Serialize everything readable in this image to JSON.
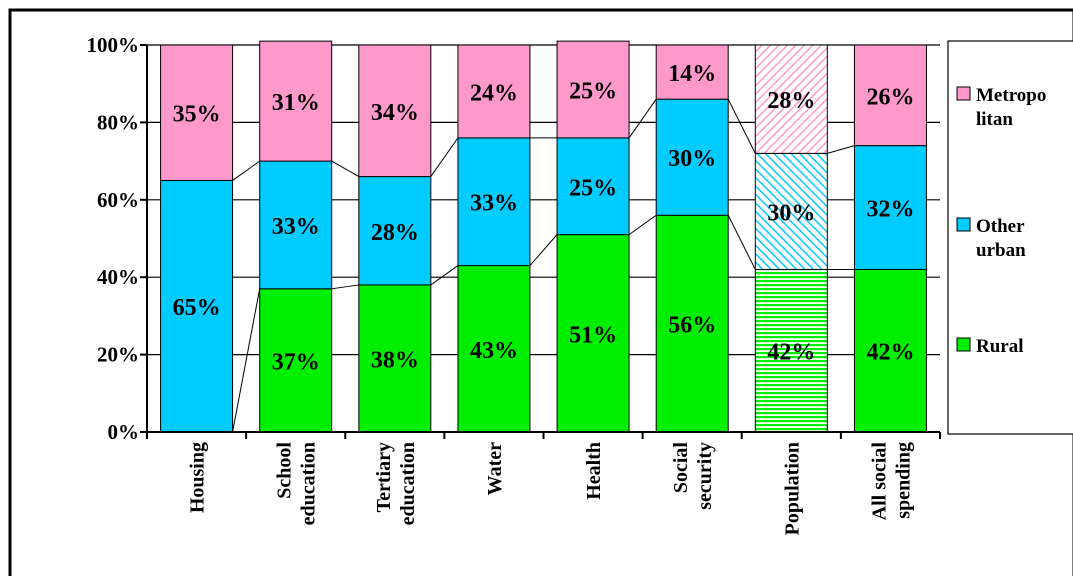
{
  "chart_data": {
    "type": "bar",
    "stacked": true,
    "normalized_100": true,
    "title": "",
    "xlabel": "",
    "ylabel": "",
    "ylim": [
      0,
      100
    ],
    "y_ticks": [
      "0%",
      "20%",
      "40%",
      "60%",
      "80%",
      "100%"
    ],
    "y_tick_values": [
      0,
      20,
      40,
      60,
      80,
      100
    ],
    "grid": true,
    "legend_position": "right",
    "categories": [
      [
        "Housing"
      ],
      [
        "School",
        "education"
      ],
      [
        "Tertiary",
        "education"
      ],
      [
        "Water"
      ],
      [
        "Health"
      ],
      [
        "Social",
        "security"
      ],
      [
        "Population"
      ],
      [
        "All social",
        "spending"
      ]
    ],
    "pattern_categories": [
      6
    ],
    "series": [
      {
        "name": "Rural",
        "color": "#00ee00",
        "values": [
          0,
          37,
          38,
          43,
          51,
          56,
          42,
          42
        ],
        "labels": [
          "",
          "37%",
          "38%",
          "43%",
          "51%",
          "56%",
          "42%",
          "42%"
        ]
      },
      {
        "name": "Other urban",
        "color": "#00ccff",
        "values": [
          65,
          33,
          28,
          33,
          25,
          30,
          30,
          32
        ],
        "labels": [
          "65%",
          "33%",
          "28%",
          "33%",
          "25%",
          "30%",
          "30%",
          "32%"
        ]
      },
      {
        "name": "Metropo litan",
        "legend_lines": [
          "Metropo",
          "litan"
        ],
        "color": "#ff99cc",
        "values": [
          35,
          31,
          34,
          24,
          25,
          14,
          28,
          26
        ],
        "labels": [
          "35%",
          "31%",
          "34%",
          "24%",
          "25%",
          "14%",
          "28%",
          "26%"
        ]
      }
    ],
    "legend": [
      {
        "lines": [
          "Metropo",
          "litan"
        ],
        "color": "#ff99cc"
      },
      {
        "lines": [
          "Other",
          "urban"
        ],
        "color": "#00ccff"
      },
      {
        "lines": [
          "Rural"
        ],
        "color": "#00ee00"
      }
    ]
  }
}
